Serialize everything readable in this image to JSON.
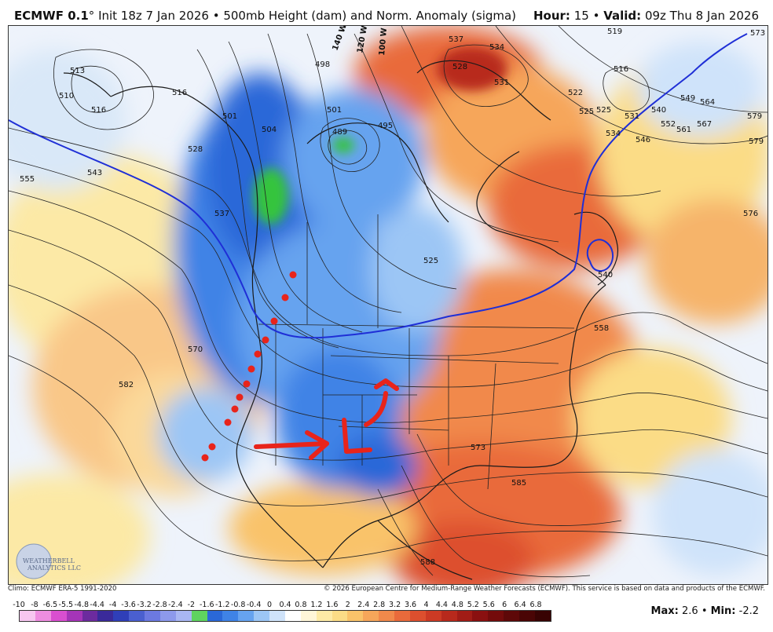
{
  "header": {
    "model": "ECMWF 0.1",
    "degree_mark": "°",
    "init": "Init 18z 7 Jan 2026",
    "bullet": "•",
    "field": "500mb Height (dam) and Norm. Anomaly (sigma)",
    "hour_label": "Hour:",
    "hour_value": "15",
    "valid_label": "Valid:",
    "valid_value": "09z Thu 8 Jan 2026"
  },
  "footer": {
    "climo": "Climo: ECMWF ERA-5 1991-2020",
    "copyright": "© 2026 European Centre for Medium-Range Weather Forecasts (ECMWF). This service is based on data and products of the ECMWF."
  },
  "scale": {
    "labels": [
      "-10",
      "-8",
      "-6.5",
      "-5.5",
      "-4.8",
      "-4.4",
      "-4",
      "-3.6",
      "-3.2",
      "-2.8",
      "-2.4",
      "-2",
      "-1.6",
      "-1.2",
      "-0.8",
      "-0.4",
      "0",
      "0.4",
      "0.8",
      "1.2",
      "1.6",
      "2",
      "2.4",
      "2.8",
      "3.2",
      "3.6",
      "4",
      "4.4",
      "4.8",
      "5.2",
      "5.6",
      "6",
      "6.4",
      "6.8"
    ],
    "colors": [
      "#f7c6f0",
      "#ee8de0",
      "#d94fd0",
      "#a535b8",
      "#6c2b9e",
      "#3a2a9a",
      "#2f3fb8",
      "#4a5fcf",
      "#6c79e0",
      "#8d99ec",
      "#a9b6f2",
      "#5fd35f",
      "#2a68d8",
      "#3f83e6",
      "#66a3ef",
      "#9cc6f5",
      "#cfe3fa",
      "#ffffff",
      "#fff6d8",
      "#fdeaa6",
      "#fbdc86",
      "#f9c36a",
      "#f6a65a",
      "#f1894b",
      "#e96a3b",
      "#dd4f2e",
      "#cc3a24",
      "#b8291c",
      "#a11c16",
      "#8a1010",
      "#740b0b",
      "#5e0808",
      "#4a0505",
      "#380303"
    ],
    "max_label": "Max:",
    "max_value": "2.6",
    "min_label": "Min:",
    "min_value": "-2.2"
  },
  "map": {
    "contour_labels": [
      "513",
      "510",
      "516",
      "516",
      "501",
      "504",
      "498",
      "501",
      "489",
      "495",
      "537",
      "534",
      "531",
      "528",
      "522",
      "525",
      "531",
      "534",
      "540",
      "546",
      "549",
      "552",
      "561",
      "564",
      "567",
      "579",
      "573",
      "579",
      "516",
      "519",
      "525",
      "528",
      "543",
      "555",
      "537",
      "570",
      "582",
      "558",
      "576",
      "525",
      "573",
      "585",
      "588",
      "540"
    ],
    "wind_barbs": [
      "140 W",
      "120 W",
      "100 W"
    ],
    "logo": "WEATHERBELL",
    "logo_sub": "ANALYTICS LLC",
    "annotations": {
      "dots": "red-dot-markers",
      "arrow": "red-trough-arrow"
    }
  }
}
